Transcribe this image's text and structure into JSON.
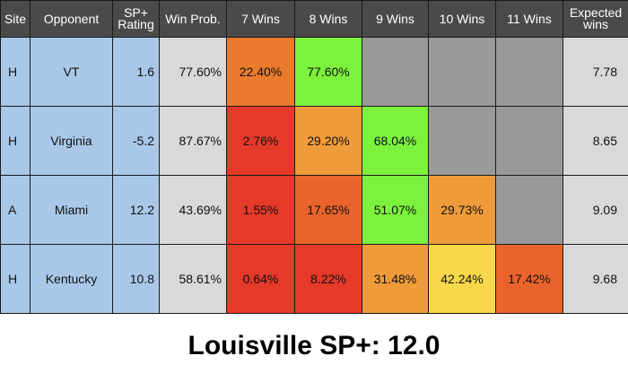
{
  "chart_data": {
    "type": "table",
    "title": "Louisville SP+: 12.0",
    "columns": [
      "Site",
      "Opponent",
      "SP+ Rating",
      "Win Prob.",
      "7 Wins",
      "8 Wins",
      "9 Wins",
      "10 Wins",
      "11 Wins",
      "Expected wins"
    ],
    "headers": {
      "site": "Site",
      "opponent": "Opponent",
      "rating": "SP+ Rating",
      "win_prob": "Win Prob.",
      "wins7": "7 Wins",
      "wins8": "8 Wins",
      "wins9": "9 Wins",
      "wins10": "10 Wins",
      "wins11": "11 Wins",
      "expected": "Expected wins"
    },
    "rows": [
      {
        "site": "H",
        "opponent": "VT",
        "rating": "1.6",
        "win_prob": "77.60%",
        "wins": [
          "22.40%",
          "77.60%",
          "",
          "",
          ""
        ],
        "expected": "7.78"
      },
      {
        "site": "H",
        "opponent": "Virginia",
        "rating": "-5.2",
        "win_prob": "87.67%",
        "wins": [
          "2.76%",
          "29.20%",
          "68.04%",
          "",
          ""
        ],
        "expected": "8.65"
      },
      {
        "site": "A",
        "opponent": "Miami",
        "rating": "12.2",
        "win_prob": "43.69%",
        "wins": [
          "1.55%",
          "17.65%",
          "51.07%",
          "29.73%",
          ""
        ],
        "expected": "9.09"
      },
      {
        "site": "H",
        "opponent": "Kentucky",
        "rating": "10.8",
        "win_prob": "58.61%",
        "wins": [
          "0.64%",
          "8.22%",
          "31.48%",
          "42.24%",
          "17.42%"
        ],
        "expected": "9.68"
      }
    ],
    "cell_colors": [
      [
        "#ec7a2c",
        "#7cf23d",
        "#999999",
        "#999999",
        "#999999"
      ],
      [
        "#e5392a",
        "#ef9b3a",
        "#7cf23d",
        "#999999",
        "#999999"
      ],
      [
        "#e5392a",
        "#e9642c",
        "#7cf23d",
        "#ef9b3a",
        "#999999"
      ],
      [
        "#e5392a",
        "#e5392a",
        "#ef9b3a",
        "#f9d74a",
        "#e9642c"
      ]
    ],
    "colors": {
      "header_bg": "#4a4a4a",
      "info_bg": "#a9c8e8",
      "grey_bg": "#d9d9d9",
      "empty_bg": "#999999"
    }
  }
}
